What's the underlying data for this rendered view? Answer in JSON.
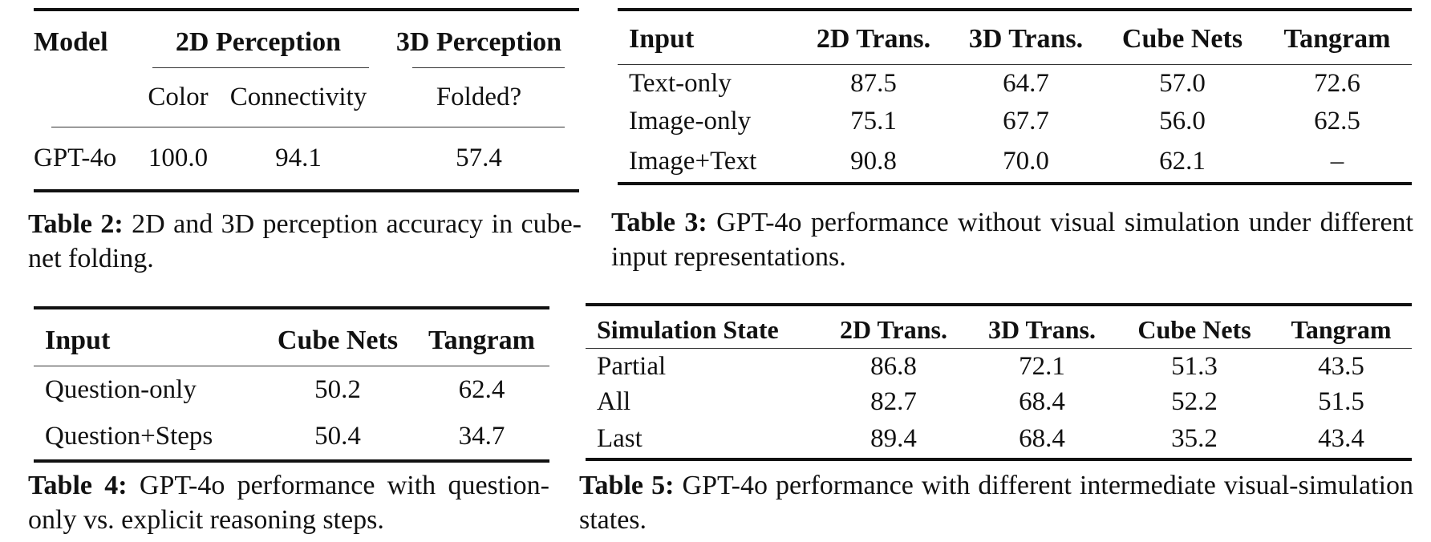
{
  "table2": {
    "headers": {
      "model": "Model",
      "perception_2d": "2D Perception",
      "perception_3d": "3D Perception"
    },
    "subheaders": {
      "color": "Color",
      "connectivity": "Connectivity",
      "folded": "Folded?"
    },
    "rows": [
      {
        "model": "GPT-4o",
        "color": "100.0",
        "connectivity": "94.1",
        "folded": "57.4"
      }
    ],
    "caption": {
      "label": "Table 2:",
      "text": "2D and 3D perception accuracy in cube-net folding."
    }
  },
  "table3": {
    "headers": [
      "Input",
      "2D Trans.",
      "3D Trans.",
      "Cube Nets",
      "Tangram"
    ],
    "rows": [
      {
        "input": "Text-only",
        "trans2d": "87.5",
        "trans3d": "64.7",
        "cube": "57.0",
        "tangram": "72.6"
      },
      {
        "input": "Image-only",
        "trans2d": "75.1",
        "trans3d": "67.7",
        "cube": "56.0",
        "tangram": "62.5"
      },
      {
        "input": "Image+Text",
        "trans2d": "90.8",
        "trans3d": "70.0",
        "cube": "62.1",
        "tangram": "–"
      }
    ],
    "caption": {
      "label": "Table 3:",
      "text": "GPT-4o performance without visual simulation under different input representations."
    }
  },
  "table4": {
    "headers": [
      "Input",
      "Cube Nets",
      "Tangram"
    ],
    "rows": [
      {
        "input": "Question-only",
        "cube": "50.2",
        "tangram": "62.4"
      },
      {
        "input": "Question+Steps",
        "cube": "50.4",
        "tangram": "34.7"
      }
    ],
    "caption": {
      "label": "Table 4:",
      "text": "GPT-4o performance with question-only vs. explicit reasoning steps."
    }
  },
  "table5": {
    "headers": [
      "Simulation State",
      "2D Trans.",
      "3D Trans.",
      "Cube Nets",
      "Tangram"
    ],
    "rows": [
      {
        "state": "Partial",
        "trans2d": "86.8",
        "trans3d": "72.1",
        "cube": "51.3",
        "tangram": "43.5"
      },
      {
        "state": "All",
        "trans2d": "82.7",
        "trans3d": "68.4",
        "cube": "52.2",
        "tangram": "51.5"
      },
      {
        "state": "Last",
        "trans2d": "89.4",
        "trans3d": "68.4",
        "cube": "35.2",
        "tangram": "43.4"
      }
    ],
    "caption": {
      "label": "Table 5:",
      "text": "GPT-4o performance with different intermediate visual-simulation states."
    }
  }
}
